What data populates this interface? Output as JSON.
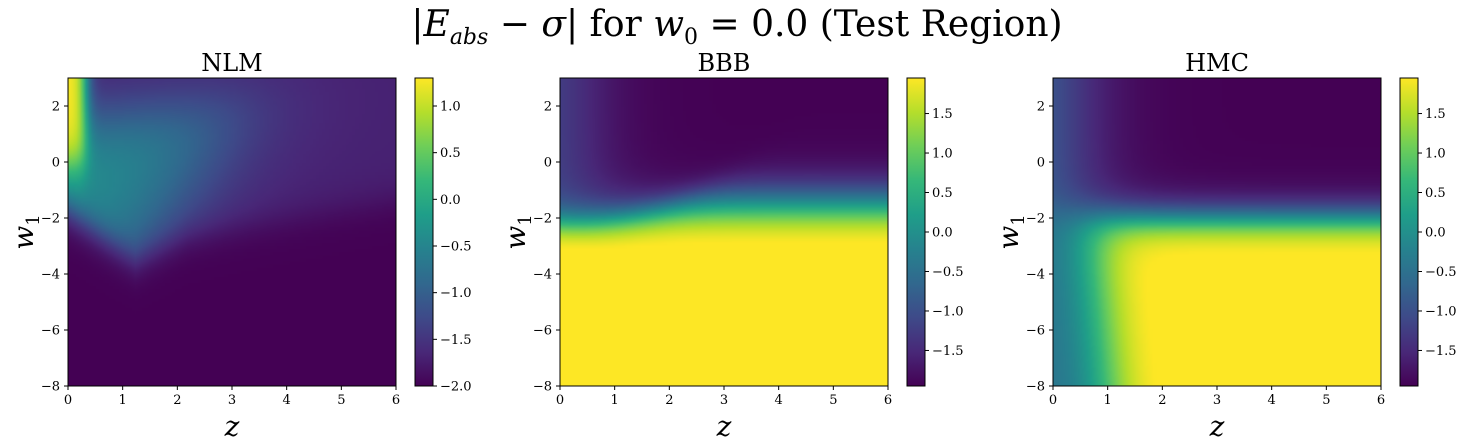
{
  "figure": {
    "suptitle_parts": {
      "abs_open": "|",
      "E": "E",
      "E_sub": "abs",
      "minus": " − ",
      "sigma": "σ",
      "abs_close": "|",
      "for": " for ",
      "w": "w",
      "w_sub": "0",
      "eq": " = 0.0 (Test Region)"
    }
  },
  "colors": {
    "viridis": [
      "#440154",
      "#482878",
      "#3e4a89",
      "#31688e",
      "#26828e",
      "#1f9e89",
      "#35b779",
      "#6ece58",
      "#b5de2b",
      "#fde725"
    ]
  },
  "chart_data": [
    {
      "type": "heatmap",
      "title": "NLM",
      "xlabel": "z",
      "ylabel": "w",
      "ylabel_sub": "1",
      "xlim": [
        0,
        6
      ],
      "ylim": [
        -8,
        3
      ],
      "xticks": [
        "0",
        "1",
        "2",
        "3",
        "4",
        "5",
        "6"
      ],
      "yticks": [
        "−8",
        "−6",
        "−4",
        "−2",
        "0",
        "2"
      ],
      "clim": [
        -2.0,
        1.3
      ],
      "colorbar_ticks": [
        -2.0,
        -1.5,
        -1.0,
        -0.5,
        0.0,
        0.5,
        1.0
      ],
      "colorbar_labels": [
        "−2.0",
        "−1.5",
        "−1.0",
        "−0.5",
        "0.0",
        "0.5",
        "1.0"
      ]
    },
    {
      "type": "heatmap",
      "title": "BBB",
      "xlabel": "z",
      "ylabel": "w",
      "ylabel_sub": "1",
      "xlim": [
        0,
        6
      ],
      "ylim": [
        -8,
        3
      ],
      "xticks": [
        "0",
        "1",
        "2",
        "3",
        "4",
        "5",
        "6"
      ],
      "yticks": [
        "−8",
        "−6",
        "−4",
        "−2",
        "0",
        "2"
      ],
      "clim": [
        -1.95,
        1.95
      ],
      "colorbar_ticks": [
        -1.5,
        -1.0,
        -0.5,
        0.0,
        0.5,
        1.0,
        1.5
      ],
      "colorbar_labels": [
        "−1.5",
        "−1.0",
        "−0.5",
        "0.0",
        "0.5",
        "1.0",
        "1.5"
      ]
    },
    {
      "type": "heatmap",
      "title": "HMC",
      "xlabel": "z",
      "ylabel": "w",
      "ylabel_sub": "1",
      "xlim": [
        0,
        6
      ],
      "ylim": [
        -8,
        3
      ],
      "xticks": [
        "0",
        "1",
        "2",
        "3",
        "4",
        "5",
        "6"
      ],
      "yticks": [
        "−8",
        "−6",
        "−4",
        "−2",
        "0",
        "2"
      ],
      "clim": [
        -1.95,
        1.95
      ],
      "colorbar_ticks": [
        -1.5,
        -1.0,
        -0.5,
        0.0,
        0.5,
        1.0,
        1.5
      ],
      "colorbar_labels": [
        "−1.5",
        "−1.0",
        "−0.5",
        "0.0",
        "0.5",
        "1.0",
        "1.5"
      ]
    }
  ]
}
